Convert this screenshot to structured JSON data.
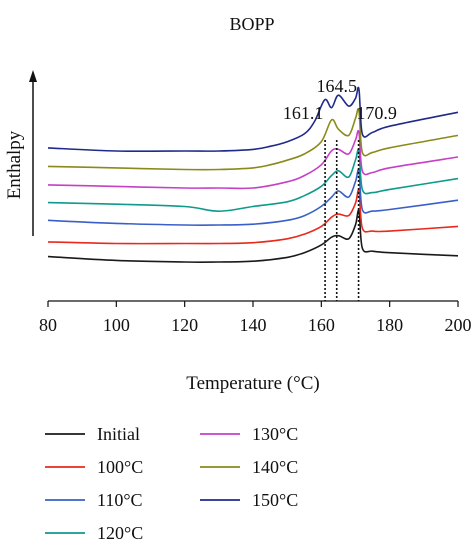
{
  "chart_data": {
    "type": "line",
    "title": "BOPP",
    "xlabel": "Temperature (°C)",
    "ylabel": "Enthalpy",
    "xlim": [
      80,
      200
    ],
    "x_ticks": [
      "80",
      "100",
      "120",
      "140",
      "160",
      "180",
      "200"
    ],
    "y_ticks": [],
    "grid": false,
    "legend_position": "bottom",
    "legend_columns": 2,
    "y_units": "arbitrary (curves offset vertically, top curve highest)",
    "peak_markers": [
      {
        "label": "161.1",
        "x": 161.1
      },
      {
        "label": "164.5",
        "x": 164.5
      },
      {
        "label": "170.9",
        "x": 170.9
      }
    ],
    "series": [
      {
        "name": "Initial",
        "color": "#1a1a1a",
        "offset": 0,
        "x": [
          80,
          100,
          120,
          130,
          140,
          150,
          155,
          160,
          163,
          165,
          168,
          170,
          171,
          172,
          175,
          180,
          200
        ],
        "y": [
          0.35,
          0.1,
          0.0,
          0.0,
          0.05,
          0.3,
          0.6,
          1.1,
          1.6,
          1.7,
          1.5,
          2.4,
          3.3,
          0.9,
          0.7,
          0.6,
          0.4
        ]
      },
      {
        "name": "100°C",
        "color": "#e8291c",
        "offset": 1,
        "x": [
          80,
          100,
          120,
          130,
          140,
          150,
          155,
          160,
          163,
          165,
          168,
          170,
          171,
          172,
          175,
          180,
          200
        ],
        "y": [
          0.1,
          0.0,
          0.0,
          0.0,
          0.05,
          0.3,
          0.6,
          1.1,
          1.7,
          1.9,
          1.8,
          2.6,
          3.4,
          1.0,
          0.8,
          0.8,
          1.1
        ]
      },
      {
        "name": "110°C",
        "color": "#3a5fc8",
        "offset": 2,
        "x": [
          80,
          100,
          120,
          130,
          140,
          150,
          155,
          160,
          163,
          165,
          168,
          170,
          171,
          172,
          175,
          180,
          200
        ],
        "y": [
          0.3,
          0.1,
          0.0,
          0.0,
          0.05,
          0.3,
          0.6,
          1.2,
          1.8,
          2.2,
          1.8,
          2.8,
          3.5,
          1.0,
          0.9,
          1.0,
          1.6
        ]
      },
      {
        "name": "120°C",
        "color": "#0e9a8c",
        "offset": 3,
        "x": [
          80,
          100,
          120,
          130,
          140,
          150,
          155,
          160,
          163,
          165,
          168,
          170,
          171,
          172,
          175,
          180,
          200
        ],
        "y": [
          0.25,
          0.15,
          0.0,
          -0.3,
          0.0,
          0.3,
          0.7,
          1.3,
          2.0,
          2.3,
          1.9,
          3.0,
          3.6,
          1.1,
          0.9,
          1.1,
          1.8
        ]
      },
      {
        "name": "130°C",
        "color": "#c63fc6",
        "offset": 4,
        "x": [
          80,
          100,
          120,
          130,
          140,
          150,
          155,
          160,
          163,
          165,
          168,
          170,
          171,
          172,
          175,
          180,
          200
        ],
        "y": [
          0.2,
          0.1,
          0.0,
          0.0,
          0.0,
          0.4,
          0.8,
          1.5,
          2.4,
          2.5,
          2.2,
          3.1,
          3.6,
          1.1,
          1.0,
          1.3,
          2.0
        ]
      },
      {
        "name": "140°C",
        "color": "#8a8a1a",
        "offset": 5,
        "x": [
          80,
          100,
          120,
          130,
          140,
          145,
          150,
          155,
          160,
          163,
          165,
          168,
          170,
          171,
          172,
          175,
          180,
          200
        ],
        "y": [
          0.2,
          0.1,
          0.0,
          0.0,
          0.1,
          0.3,
          0.6,
          1.0,
          1.8,
          3.2,
          2.6,
          2.2,
          3.3,
          3.8,
          1.1,
          1.1,
          1.4,
          2.2
        ]
      },
      {
        "name": "150°C",
        "color": "#1f2a8a",
        "offset": 6,
        "x": [
          80,
          100,
          120,
          130,
          140,
          145,
          150,
          155,
          158,
          161,
          163,
          165,
          168,
          170,
          171,
          172,
          175,
          180,
          200
        ],
        "y": [
          0.2,
          0.0,
          0.0,
          0.0,
          0.1,
          0.3,
          0.6,
          1.1,
          1.9,
          3.3,
          2.8,
          3.6,
          2.9,
          3.4,
          4.0,
          1.1,
          1.2,
          1.6,
          2.5
        ]
      }
    ]
  }
}
